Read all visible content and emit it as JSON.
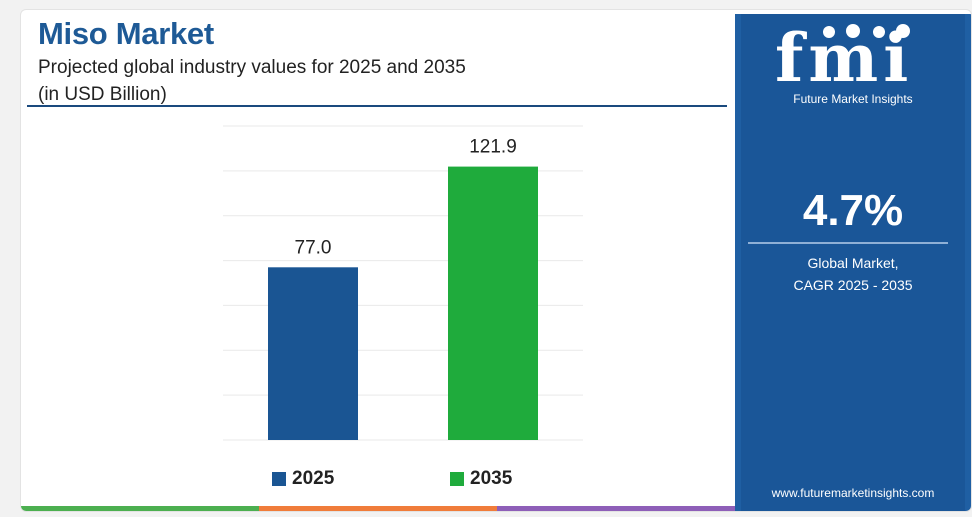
{
  "header": {
    "title": "Miso Market",
    "subtitle": "Projected global industry values for 2025 and 2035",
    "unit": "(in USD Billion)"
  },
  "chart_data": {
    "type": "bar",
    "categories": [
      "2025",
      "2035"
    ],
    "values": [
      77.0,
      121.9
    ],
    "value_labels": [
      "77.0",
      "121.9"
    ],
    "colors": [
      "#1a5593",
      "#1fab3c"
    ],
    "title": "Miso Market",
    "subtitle": "Projected global industry values for 2025 and 2035",
    "xlabel": "",
    "ylabel": "",
    "ylim": [
      0,
      140
    ],
    "grid": true,
    "legend": "bottom-center"
  },
  "legend": [
    {
      "label": "2025",
      "color": "#1a5593"
    },
    {
      "label": "2035",
      "color": "#1fab3c"
    }
  ],
  "side_panel": {
    "logo_text": "fmi",
    "logo_icon": "fmi-people-icon",
    "tagline": "Future Market Insights",
    "cagr_value": "4.7%",
    "cagr_label_line1": "Global Market,",
    "cagr_label_line2": "CAGR 2025 - 2035",
    "website": "www.futuremarketinsights.com",
    "background_color": "#1a5698"
  },
  "bottom_bar_colors": [
    "#4caf50",
    "#f07c3a",
    "#8e5fb8"
  ]
}
